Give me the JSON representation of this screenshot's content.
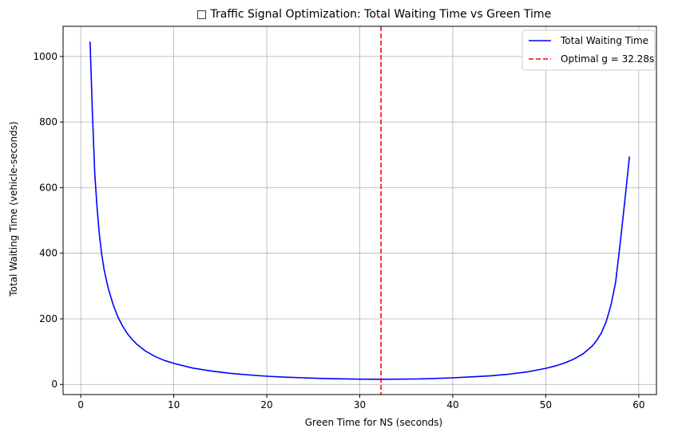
{
  "chart_data": {
    "type": "line",
    "title": "□ Traffic Signal Optimization: Total Waiting Time vs Green Time",
    "xlabel": "Green Time for NS (seconds)",
    "ylabel": "Total Waiting Time (vehicle-seconds)",
    "xlim": [
      -1.9,
      61.9
    ],
    "ylim": [
      -31,
      1092
    ],
    "xticks": [
      0,
      10,
      20,
      30,
      40,
      50,
      60
    ],
    "yticks": [
      0,
      200,
      400,
      600,
      800,
      1000
    ],
    "grid": true,
    "legend_position": "top-right",
    "series": [
      {
        "name": "Total Waiting Time",
        "color": "#0000ff",
        "style": "solid",
        "x": [
          1,
          1.25,
          1.5,
          1.75,
          2,
          2.25,
          2.5,
          2.75,
          3,
          3.5,
          4,
          4.5,
          5,
          5.5,
          6,
          7,
          8,
          9,
          10,
          12,
          14,
          16,
          18,
          20,
          22,
          24,
          26,
          28,
          30,
          32,
          34,
          36,
          38,
          40,
          42,
          44,
          46,
          48,
          50,
          51,
          52,
          53,
          54,
          55,
          55.5,
          56,
          56.5,
          57,
          57.5,
          58,
          58.5,
          59
        ],
        "y": [
          1045,
          830,
          645,
          540,
          458,
          398,
          352,
          318,
          288,
          242,
          205,
          178,
          155,
          138,
          123,
          101,
          85,
          73,
          64,
          50,
          41,
          34,
          29,
          25,
          22,
          20,
          18,
          17,
          16,
          15.6,
          15.8,
          16.5,
          18,
          20,
          23,
          26,
          31,
          38,
          49,
          56,
          65,
          77,
          93,
          117,
          135,
          158,
          192,
          240,
          310,
          430,
          560,
          695
        ]
      }
    ],
    "vlines": [
      {
        "name": "Optimal g = 32.28s",
        "x": 32.28,
        "color": "#ff0000",
        "style": "dashed"
      }
    ]
  }
}
